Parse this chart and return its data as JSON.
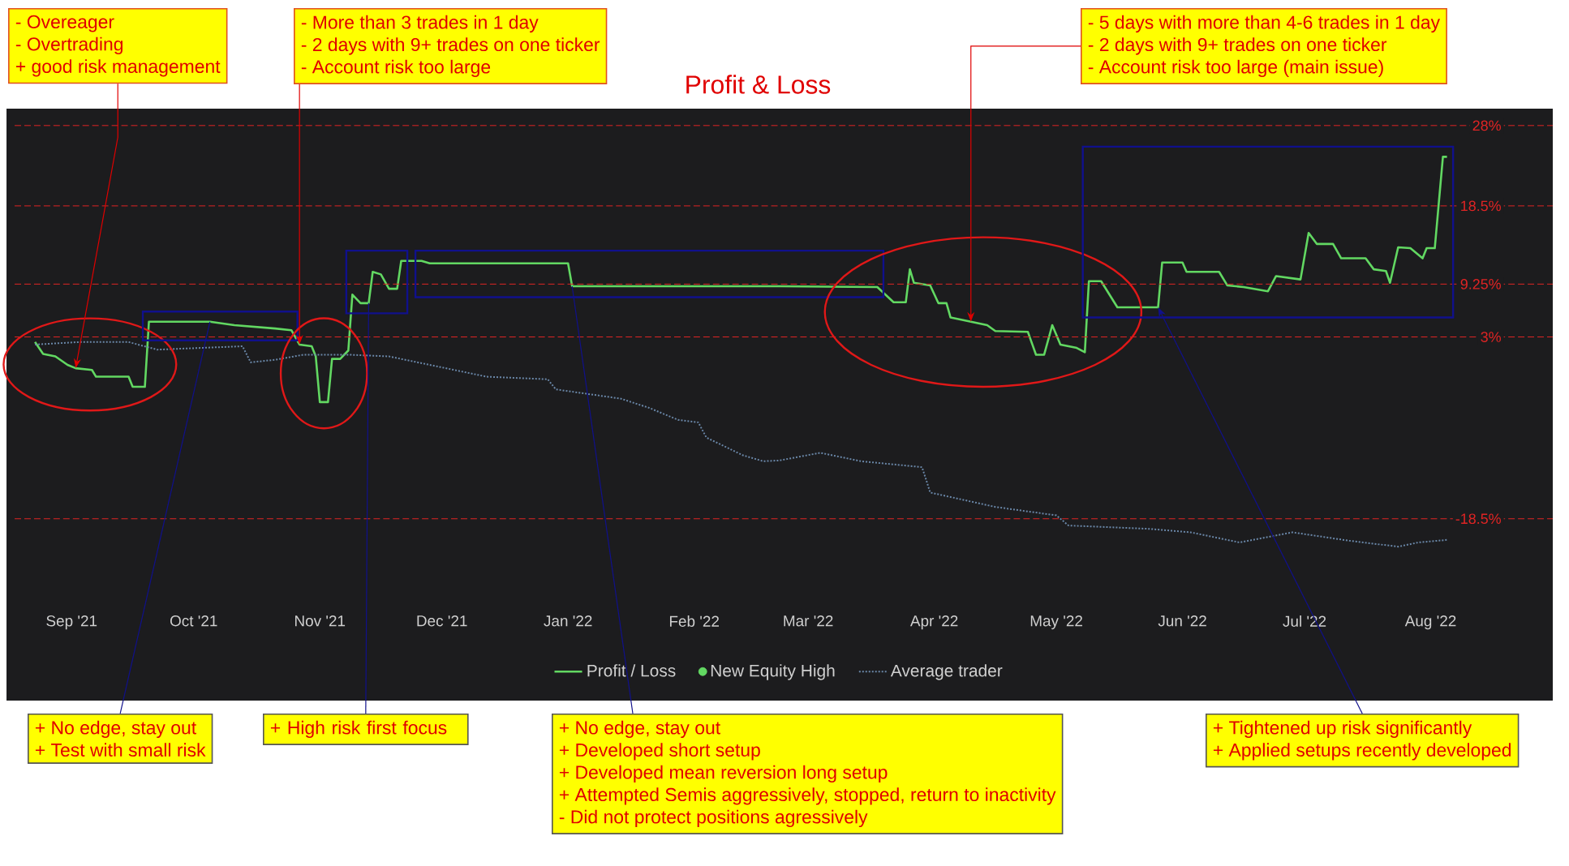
{
  "chart_data": {
    "type": "line",
    "title": "Profit & Loss",
    "legend": "bottom",
    "xlim": [
      "2021-08-16",
      "2022-08-31"
    ],
    "ylim": [
      -40,
      30
    ],
    "xticks": [
      {
        "value": "2021-09-01",
        "label": "Sep '21"
      },
      {
        "value": "2021-10-01",
        "label": "Oct '21"
      },
      {
        "value": "2021-11-01",
        "label": "Nov '21"
      },
      {
        "value": "2021-12-01",
        "label": "Dec '21"
      },
      {
        "value": "2022-01-01",
        "label": "Jan '22"
      },
      {
        "value": "2022-02-01",
        "label": "Feb '22"
      },
      {
        "value": "2022-03-01",
        "label": "Mar '22"
      },
      {
        "value": "2022-04-01",
        "label": "Apr '22"
      },
      {
        "value": "2022-05-01",
        "label": "May '22"
      },
      {
        "value": "2022-06-01",
        "label": "Jun '22"
      },
      {
        "value": "2022-07-01",
        "label": "Jul '22"
      },
      {
        "value": "2022-08-01",
        "label": "Aug '22"
      }
    ],
    "ref_lines": [
      {
        "axis": "y",
        "value": 28,
        "label": "28%",
        "color": "#e02424",
        "line_style": "dashed"
      },
      {
        "axis": "y",
        "value": 18.5,
        "label": "18.5%",
        "color": "#e02424",
        "line_style": "dashed"
      },
      {
        "axis": "y",
        "value": 9.25,
        "label": "9.25%",
        "color": "#e02424",
        "line_style": "dashed"
      },
      {
        "axis": "y",
        "value": 3,
        "label": "3%",
        "color": "#e02424",
        "line_style": "dashed"
      },
      {
        "axis": "y",
        "value": -18.5,
        "label": "-18.5%",
        "color": "#e02424",
        "line_style": "dashed"
      }
    ],
    "series": [
      {
        "name": "Profit / Loss",
        "type": "line",
        "color": "#62d862",
        "line_style": "solid",
        "x": [
          "2021-08-23",
          "2021-08-25",
          "2021-08-28",
          "2021-08-31",
          "2021-09-02",
          "2021-09-06",
          "2021-09-07",
          "2021-09-15",
          "2021-09-16",
          "2021-09-19",
          "2021-09-20",
          "2021-10-05",
          "2021-10-11",
          "2021-10-21",
          "2021-10-25",
          "2021-10-27",
          "2021-10-30",
          "2021-10-31",
          "2021-11-01",
          "2021-11-03",
          "2021-11-04",
          "2021-11-06",
          "2021-11-08",
          "2021-11-09",
          "2021-11-11",
          "2021-11-13",
          "2021-11-14",
          "2021-11-16",
          "2021-11-18",
          "2021-11-20",
          "2021-11-21",
          "2021-11-26",
          "2021-11-28",
          "2022-01-01",
          "2022-01-02",
          "2022-02-22",
          "2022-03-18",
          "2022-03-22",
          "2022-03-25",
          "2022-03-26",
          "2022-03-27",
          "2022-03-31",
          "2022-04-02",
          "2022-04-04",
          "2022-04-05",
          "2022-04-10",
          "2022-04-14",
          "2022-04-16",
          "2022-04-24",
          "2022-04-26",
          "2022-04-28",
          "2022-04-30",
          "2022-05-02",
          "2022-05-06",
          "2022-05-08",
          "2022-05-09",
          "2022-05-12",
          "2022-05-16",
          "2022-05-26",
          "2022-05-27",
          "2022-06-01",
          "2022-06-02",
          "2022-06-10",
          "2022-06-12",
          "2022-06-16",
          "2022-06-22",
          "2022-06-24",
          "2022-06-30",
          "2022-07-02",
          "2022-07-04",
          "2022-07-08",
          "2022-07-10",
          "2022-07-16",
          "2022-07-18",
          "2022-07-21",
          "2022-07-22",
          "2022-07-24",
          "2022-07-27",
          "2022-07-30",
          "2022-07-31",
          "2022-08-02",
          "2022-08-04",
          "2022-08-05"
        ],
        "values": [
          2.4,
          1.0,
          0.7,
          -0.3,
          -0.7,
          -0.9,
          -1.7,
          -1.7,
          -2.9,
          -2.9,
          4.8,
          4.8,
          4.4,
          4.0,
          3.8,
          2.1,
          1.9,
          0.7,
          -4.7,
          -4.7,
          0.4,
          0.4,
          1.4,
          8.0,
          7.0,
          7.0,
          10.7,
          10.4,
          8.7,
          8.7,
          12.0,
          12.0,
          11.7,
          11.7,
          9.0,
          9.0,
          8.9,
          7.1,
          7.1,
          11.0,
          9.4,
          9.1,
          7.0,
          7.0,
          5.3,
          4.8,
          4.4,
          3.7,
          3.6,
          0.9,
          0.9,
          4.4,
          2.1,
          1.7,
          1.2,
          9.6,
          9.6,
          6.5,
          6.5,
          11.8,
          11.8,
          10.7,
          10.7,
          9.1,
          8.9,
          8.4,
          10.2,
          9.8,
          15.3,
          14.0,
          14.0,
          12.3,
          12.3,
          11.0,
          10.8,
          9.4,
          13.6,
          13.5,
          12.3,
          13.5,
          13.5,
          24.3,
          24.3
        ]
      },
      {
        "name": "New Equity High",
        "type": "scatter",
        "color": "#62d862"
      },
      {
        "name": "Average trader",
        "type": "line",
        "color": "#6a87a8",
        "line_style": "dotted",
        "x": [
          "2021-08-23",
          "2021-09-03",
          "2021-09-15",
          "2021-09-22",
          "2021-10-13",
          "2021-10-15",
          "2021-10-21",
          "2021-10-28",
          "2021-11-08",
          "2021-11-18",
          "2021-11-29",
          "2021-12-12",
          "2021-12-27",
          "2021-12-29",
          "2022-01-14",
          "2022-01-21",
          "2022-01-28",
          "2022-02-02",
          "2022-02-04",
          "2022-02-13",
          "2022-02-18",
          "2022-02-22",
          "2022-03-04",
          "2022-03-14",
          "2022-03-29",
          "2022-03-31",
          "2022-04-16",
          "2022-05-01",
          "2022-05-04",
          "2022-05-24",
          "2022-06-03",
          "2022-06-15",
          "2022-06-28",
          "2022-07-12",
          "2022-07-24",
          "2022-07-29",
          "2022-08-05"
        ],
        "values": [
          2.1,
          2.4,
          2.4,
          1.5,
          1.9,
          0.0,
          0.3,
          0.9,
          0.9,
          0.7,
          -0.4,
          -1.7,
          -2.0,
          -3.2,
          -4.3,
          -5.4,
          -6.8,
          -7.1,
          -8.9,
          -11.0,
          -11.7,
          -11.6,
          -10.7,
          -11.7,
          -12.4,
          -15.4,
          -17.1,
          -18.1,
          -19.3,
          -19.7,
          -20.1,
          -21.3,
          -20.1,
          -21.1,
          -21.8,
          -21.3,
          -21.0
        ]
      }
    ],
    "annotations": [
      "- Overeager",
      "- Overtrading",
      {
        "text": "+ good risk management",
        "x": "2021-09-02",
        "y": -0.7
      },
      "- More than 3 trades in 1 day",
      "- 2 days with 9+ trades on one ticker",
      {
        "text": "- Account risk too large",
        "x": "2021-10-27",
        "y": 2.1
      },
      {
        "text": "- 5 days with more than 4-6 trades in 1 day",
        "x": "2022-04-10",
        "y": 4.8
      },
      "- 2 days with 9+ trades on one ticker",
      "- Account risk too large (main issue)",
      {
        "text": "+ No edge, stay out",
        "x": "2021-10-05",
        "y": 4.8
      },
      "+ Test with small risk",
      {
        "text": "+ High risk first focus",
        "x": "2021-11-13",
        "y": 7.0
      },
      {
        "text": "+ No edge, stay out",
        "x": "2022-01-02",
        "y": 9.0
      },
      "+ Developed short setup",
      "+ Developed mean reversion long setup",
      "+ Attempted Semis aggressively, stopped, return to inactivity",
      "- Did not protect positions agressively",
      {
        "text": "+ Tightened up risk significantly",
        "x": "2022-05-26",
        "y": 6.5
      },
      "+ Applied setups recently developed"
    ]
  }
}
